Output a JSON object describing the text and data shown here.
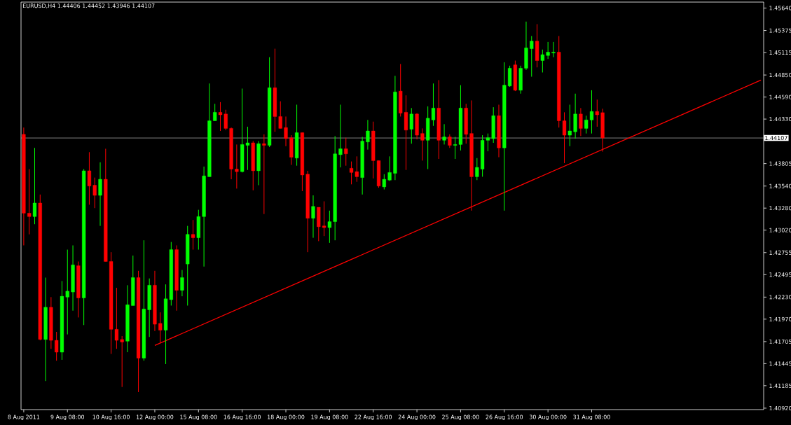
{
  "chart_data": {
    "type": "candlestick",
    "title": "EURUSD,H4  1.44406 1.44452 1.43946 1.44107",
    "series": [
      {
        "ohlc": [
          [
            1.4415,
            1.4423,
            1.4284,
            1.4322
          ],
          [
            1.4322,
            1.4374,
            1.4297,
            1.4318
          ],
          [
            1.4318,
            1.4399,
            1.4309,
            1.4334
          ],
          [
            1.4334,
            1.4344,
            1.4172,
            1.4173
          ],
          [
            1.4173,
            1.4246,
            1.4124,
            1.4211
          ],
          [
            1.4211,
            1.4223,
            1.4162,
            1.4172
          ],
          [
            1.4172,
            1.4182,
            1.4148,
            1.4158
          ],
          [
            1.4158,
            1.4242,
            1.4149,
            1.4224
          ],
          [
            1.4223,
            1.4279,
            1.4179,
            1.423
          ],
          [
            1.4229,
            1.4284,
            1.4207,
            1.4261
          ],
          [
            1.426,
            1.4265,
            1.4199,
            1.4222
          ],
          [
            1.4222,
            1.4374,
            1.419,
            1.4372
          ],
          [
            1.4372,
            1.4394,
            1.4332,
            1.4354
          ],
          [
            1.4355,
            1.4364,
            1.4328,
            1.4343
          ],
          [
            1.4343,
            1.4382,
            1.4307,
            1.4362
          ],
          [
            1.4362,
            1.4398,
            1.4265,
            1.4265
          ],
          [
            1.4265,
            1.4276,
            1.4156,
            1.4185
          ],
          [
            1.4185,
            1.4234,
            1.4162,
            1.4172
          ],
          [
            1.4173,
            1.4177,
            1.4117,
            1.417
          ],
          [
            1.4171,
            1.4237,
            1.4158,
            1.4214
          ],
          [
            1.4213,
            1.4272,
            1.4213,
            1.4246
          ],
          [
            1.4246,
            1.4254,
            1.4111,
            1.4151
          ],
          [
            1.4151,
            1.429,
            1.4148,
            1.4209
          ],
          [
            1.4208,
            1.4245,
            1.4176,
            1.4237
          ],
          [
            1.4237,
            1.4254,
            1.4183,
            1.4191
          ],
          [
            1.4192,
            1.4205,
            1.4169,
            1.4184
          ],
          [
            1.4184,
            1.4238,
            1.4144,
            1.4221
          ],
          [
            1.422,
            1.4288,
            1.4213,
            1.4279
          ],
          [
            1.4279,
            1.4284,
            1.4207,
            1.4231
          ],
          [
            1.4231,
            1.4255,
            1.4224,
            1.4246
          ],
          [
            1.4262,
            1.4307,
            1.4213,
            1.4297
          ],
          [
            1.4297,
            1.4314,
            1.4279,
            1.4293
          ],
          [
            1.4293,
            1.4326,
            1.4279,
            1.4318
          ],
          [
            1.4318,
            1.4377,
            1.4259,
            1.4366
          ],
          [
            1.4365,
            1.4475,
            1.4365,
            1.4431
          ],
          [
            1.4431,
            1.4451,
            1.4431,
            1.4441
          ],
          [
            1.4441,
            1.4453,
            1.4419,
            1.4438
          ],
          [
            1.4439,
            1.4444,
            1.442,
            1.4422
          ],
          [
            1.4422,
            1.4423,
            1.4362,
            1.4374
          ],
          [
            1.4374,
            1.4403,
            1.4351,
            1.4371
          ],
          [
            1.4371,
            1.4469,
            1.437,
            1.4403
          ],
          [
            1.4402,
            1.4424,
            1.4373,
            1.4405
          ],
          [
            1.4405,
            1.4407,
            1.4349,
            1.4372
          ],
          [
            1.4372,
            1.4407,
            1.4355,
            1.4404
          ],
          [
            1.4404,
            1.4415,
            1.4321,
            1.4402
          ],
          [
            1.4402,
            1.4506,
            1.44,
            1.447
          ],
          [
            1.447,
            1.4516,
            1.4418,
            1.4436
          ],
          [
            1.4436,
            1.4454,
            1.4422,
            1.4422
          ],
          [
            1.4423,
            1.4436,
            1.4401,
            1.441
          ],
          [
            1.4411,
            1.4414,
            1.4379,
            1.4388
          ],
          [
            1.4387,
            1.445,
            1.4378,
            1.4417
          ],
          [
            1.4417,
            1.4417,
            1.4348,
            1.4367
          ],
          [
            1.4368,
            1.4372,
            1.4276,
            1.4316
          ],
          [
            1.4316,
            1.4343,
            1.4293,
            1.433
          ],
          [
            1.4329,
            1.4329,
            1.4289,
            1.4306
          ],
          [
            1.4307,
            1.4336,
            1.4295,
            1.4305
          ],
          [
            1.4305,
            1.4325,
            1.4287,
            1.4312
          ],
          [
            1.4312,
            1.4413,
            1.429,
            1.4392
          ],
          [
            1.4391,
            1.445,
            1.4376,
            1.4398
          ],
          [
            1.4398,
            1.4411,
            1.4378,
            1.4392
          ],
          [
            1.4375,
            1.4383,
            1.4356,
            1.437
          ],
          [
            1.4371,
            1.4389,
            1.4359,
            1.4365
          ],
          [
            1.4364,
            1.4412,
            1.4344,
            1.4407
          ],
          [
            1.4406,
            1.4432,
            1.4397,
            1.4419
          ],
          [
            1.4419,
            1.443,
            1.4363,
            1.4384
          ],
          [
            1.4384,
            1.4384,
            1.4352,
            1.4354
          ],
          [
            1.4353,
            1.4368,
            1.435,
            1.4362
          ],
          [
            1.4361,
            1.4389,
            1.436,
            1.437
          ],
          [
            1.4369,
            1.4484,
            1.4361,
            1.4465
          ],
          [
            1.4466,
            1.4498,
            1.4436,
            1.444
          ],
          [
            1.4441,
            1.4461,
            1.4373,
            1.442
          ],
          [
            1.4421,
            1.4446,
            1.4404,
            1.4439
          ],
          [
            1.4439,
            1.444,
            1.4409,
            1.4414
          ],
          [
            1.4416,
            1.4422,
            1.4384,
            1.4408
          ],
          [
            1.4408,
            1.4448,
            1.4374,
            1.4434
          ],
          [
            1.4432,
            1.4475,
            1.4425,
            1.4446
          ],
          [
            1.4446,
            1.4479,
            1.4386,
            1.4408
          ],
          [
            1.4408,
            1.4427,
            1.4403,
            1.4412
          ],
          [
            1.4412,
            1.4415,
            1.4399,
            1.4402
          ],
          [
            1.4402,
            1.4412,
            1.4386,
            1.4403
          ],
          [
            1.4403,
            1.4473,
            1.4396,
            1.4446
          ],
          [
            1.4446,
            1.4451,
            1.4404,
            1.4415
          ],
          [
            1.4416,
            1.4455,
            1.4325,
            1.4365
          ],
          [
            1.4365,
            1.4387,
            1.4361,
            1.4376
          ],
          [
            1.4374,
            1.4414,
            1.4365,
            1.4408
          ],
          [
            1.4408,
            1.4416,
            1.4395,
            1.4411
          ],
          [
            1.441,
            1.4447,
            1.4405,
            1.4437
          ],
          [
            1.4437,
            1.445,
            1.4388,
            1.4399
          ],
          [
            1.4399,
            1.45,
            1.4325,
            1.4473
          ],
          [
            1.4472,
            1.4496,
            1.4471,
            1.4493
          ],
          [
            1.4497,
            1.4502,
            1.4466,
            1.4467
          ],
          [
            1.4467,
            1.4496,
            1.4463,
            1.4493
          ],
          [
            1.4493,
            1.4548,
            1.4491,
            1.4517
          ],
          [
            1.4516,
            1.4531,
            1.4483,
            1.4525
          ],
          [
            1.4525,
            1.4545,
            1.4494,
            1.4502
          ],
          [
            1.4502,
            1.4515,
            1.4488,
            1.4509
          ],
          [
            1.4508,
            1.4524,
            1.4504,
            1.4512
          ],
          [
            1.4511,
            1.4524,
            1.4506,
            1.4512
          ],
          [
            1.4512,
            1.4531,
            1.4423,
            1.4431
          ],
          [
            1.4431,
            1.4441,
            1.4381,
            1.4414
          ],
          [
            1.4414,
            1.445,
            1.4401,
            1.4419
          ],
          [
            1.4418,
            1.4463,
            1.441,
            1.4439
          ],
          [
            1.4439,
            1.4446,
            1.4413,
            1.4422
          ],
          [
            1.4422,
            1.4437,
            1.4416,
            1.4432
          ],
          [
            1.4432,
            1.4467,
            1.4416,
            1.4442
          ],
          [
            1.4442,
            1.4456,
            1.4424,
            1.4438
          ],
          [
            1.44406,
            1.44452,
            1.43946,
            1.44107
          ],
          null,
          null,
          null,
          null,
          null,
          null,
          null,
          null,
          null,
          null,
          null,
          null,
          null,
          null,
          null,
          null,
          null,
          null,
          null,
          null,
          null,
          null,
          null,
          null,
          null,
          null,
          null,
          null,
          null
        ],
        "colors": [
          "#ff0000",
          "#ff0000",
          "#00ff00",
          "#ff0000",
          "#00ff00",
          "#ff0000",
          "#ff0000",
          "#00ff00",
          "#00ff00",
          "#00ff00",
          "#ff0000",
          "#00ff00",
          "#ff0000",
          "#ff0000",
          "#00ff00",
          "#ff0000",
          "#ff0000",
          "#ff0000",
          "#ff0000",
          "#00ff00",
          "#00ff00",
          "#ff0000",
          "#00ff00",
          "#00ff00",
          "#ff0000",
          "#ff0000",
          "#00ff00",
          "#00ff00",
          "#ff0000",
          "#00ff00",
          "#00ff00",
          "#ff0000",
          "#00ff00",
          "#00ff00",
          "#00ff00",
          "#00ff00",
          "#ff0000",
          "#ff0000",
          "#ff0000",
          "#ff0000",
          "#00ff00",
          "#00ff00",
          "#ff0000",
          "#00ff00",
          "#ff0000",
          "#00ff00",
          "#ff0000",
          "#ff0000",
          "#ff0000",
          "#ff0000",
          "#00ff00",
          "#ff0000",
          "#ff0000",
          "#00ff00",
          "#ff0000",
          "#ff0000",
          "#00ff00",
          "#00ff00",
          "#00ff00",
          "#ff0000",
          "#ff0000",
          "#ff0000",
          "#00ff00",
          "#00ff00",
          "#ff0000",
          "#ff0000",
          "#00ff00",
          "#00ff00",
          "#00ff00",
          "#ff0000",
          "#ff0000",
          "#00ff00",
          "#ff0000",
          "#ff0000",
          "#00ff00",
          "#00ff00",
          "#ff0000",
          "#00ff00",
          "#ff0000",
          "#00ff00",
          "#00ff00",
          "#ff0000",
          "#ff0000",
          "#00ff00",
          "#00ff00",
          "#00ff00",
          "#00ff00",
          "#ff0000",
          "#00ff00",
          "#00ff00",
          "#ff0000",
          "#00ff00",
          "#00ff00",
          "#00ff00",
          "#ff0000",
          "#00ff00",
          "#00ff00",
          "#00ff00",
          "#ff0000",
          "#ff0000",
          "#00ff00",
          "#00ff00",
          "#ff0000",
          "#00ff00",
          "#00ff00",
          "#ff0000",
          "#ff0000",
          null,
          null,
          null,
          null,
          null,
          null,
          null,
          null,
          null,
          null,
          null,
          null,
          null,
          null,
          null,
          null,
          null,
          null,
          null,
          null,
          null,
          null,
          null,
          null,
          null,
          null,
          null,
          null,
          null
        ]
      },
      {
        "type": "line",
        "color": "#ff0000",
        "values": [
          null,
          null,
          null,
          null,
          null,
          null,
          null,
          null,
          null,
          null,
          null,
          null,
          null,
          null,
          null,
          null,
          null,
          null,
          null,
          null,
          null,
          null,
          null,
          null,
          1.4166,
          null,
          null,
          null,
          null,
          null,
          null,
          null,
          null,
          null,
          null,
          null,
          null,
          null,
          null,
          null,
          null,
          null,
          null,
          null,
          null,
          null,
          null,
          null,
          null,
          null,
          null,
          null,
          null,
          null,
          null,
          null,
          null,
          null,
          null,
          null,
          null,
          null,
          null,
          null,
          null,
          null,
          null,
          null,
          null,
          null,
          null,
          null,
          null,
          null,
          null,
          null,
          null,
          null,
          null,
          null,
          null,
          null,
          null,
          null,
          null,
          null,
          null,
          null,
          null,
          null,
          null,
          null,
          null,
          null,
          null,
          null,
          null,
          null,
          null,
          null,
          null,
          null,
          null,
          null,
          null,
          null,
          null,
          null,
          null,
          null,
          null,
          null,
          null,
          null,
          null,
          null,
          null,
          null,
          null,
          null,
          null,
          null,
          null,
          null,
          null,
          null,
          null,
          null,
          null,
          null,
          null,
          null,
          null,
          null,
          null,
          1.4479
        ]
      }
    ],
    "categories": [
      "8 Aug 2011",
      null,
      null,
      null,
      null,
      null,
      null,
      null,
      "9 Aug 08:00",
      null,
      null,
      null,
      null,
      null,
      null,
      null,
      "10 Aug 16:00",
      null,
      null,
      null,
      null,
      null,
      null,
      null,
      "12 Aug 00:00",
      null,
      null,
      null,
      null,
      null,
      null,
      null,
      "15 Aug 08:00",
      null,
      null,
      null,
      null,
      null,
      null,
      null,
      "16 Aug 16:00",
      null,
      null,
      null,
      null,
      null,
      null,
      null,
      "18 Aug 00:00",
      null,
      null,
      null,
      null,
      null,
      null,
      null,
      "19 Aug 08:00",
      null,
      null,
      null,
      null,
      null,
      null,
      null,
      "22 Aug 16:00",
      null,
      null,
      null,
      null,
      null,
      null,
      null,
      "24 Aug 00:00",
      null,
      null,
      null,
      null,
      null,
      null,
      null,
      "25 Aug 08:00",
      null,
      null,
      null,
      null,
      null,
      null,
      null,
      "26 Aug 16:00",
      null,
      null,
      null,
      null,
      null,
      null,
      null,
      "30 Aug 00:00",
      null,
      null,
      null,
      null,
      null,
      null,
      null,
      "31 Aug 08:00",
      null,
      null,
      null,
      null,
      null,
      null,
      null,
      null,
      null,
      null,
      null,
      null,
      null,
      null,
      null,
      null,
      null,
      null,
      null,
      null,
      null,
      null,
      null,
      null,
      null,
      null,
      null,
      null,
      null,
      null,
      null
    ],
    "ylim": [
      1.40903,
      1.4571
    ],
    "yticks": [
      {
        "value": 1.4092,
        "label": "1.40920"
      },
      {
        "value": 1.41185,
        "label": "1.41185"
      },
      {
        "value": 1.41445,
        "label": "1.41445"
      },
      {
        "value": 1.41705,
        "label": "1.41705"
      },
      {
        "value": 1.4197,
        "label": "1.41970"
      },
      {
        "value": 1.4223,
        "label": "1.42230"
      },
      {
        "value": 1.42495,
        "label": "1.42495"
      },
      {
        "value": 1.42755,
        "label": "1.42755"
      },
      {
        "value": 1.4302,
        "label": "1.43020"
      },
      {
        "value": 1.4328,
        "label": "1.43280"
      },
      {
        "value": 1.4354,
        "label": "1.43540"
      },
      {
        "value": 1.43805,
        "label": "1.43805"
      },
      {
        "value": 1.4433,
        "label": "1.44330"
      },
      {
        "value": 1.4459,
        "label": "1.44590"
      },
      {
        "value": 1.4485,
        "label": "1.44850"
      },
      {
        "value": 1.45115,
        "label": "1.45115"
      },
      {
        "value": 1.45375,
        "label": "1.45375"
      },
      {
        "value": 1.4564,
        "label": "1.45640"
      }
    ],
    "ref_lines": [
      {
        "axis": "y",
        "value": 1.44107,
        "label": "1.44107",
        "color": "#a0a0a0"
      }
    ]
  }
}
